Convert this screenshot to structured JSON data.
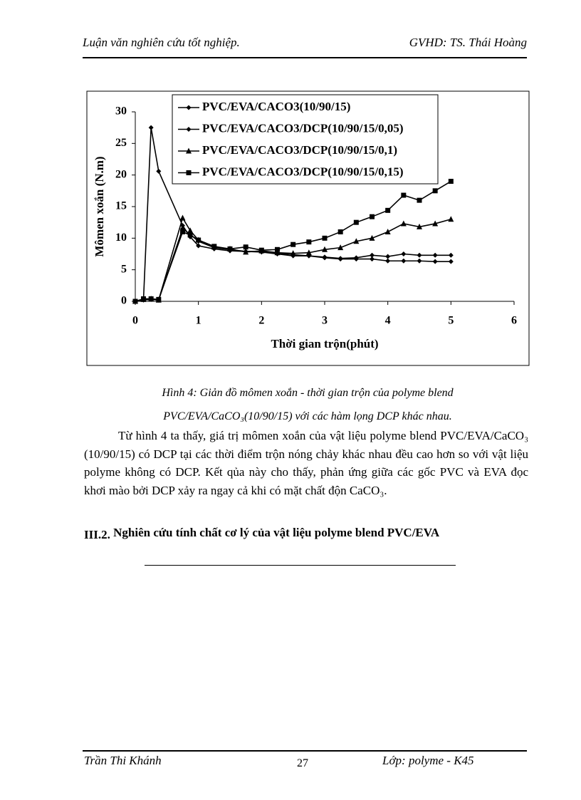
{
  "header": {
    "left": "Luận văn nghiên cứu tốt nghiệp.",
    "right": "GVHD: TS. Thái Hoàng"
  },
  "chart_data": {
    "type": "line",
    "x_label": "Thời gian trộn(phút)",
    "y_label": "Mômen xoắn (N.m)",
    "xlim": [
      0,
      6
    ],
    "xticks": [
      0,
      1,
      2,
      3,
      4,
      5,
      6
    ],
    "ylim": [
      0,
      30
    ],
    "yticks": [
      0,
      5,
      10,
      15,
      20,
      25,
      30
    ],
    "grid": false,
    "legend": "top",
    "x": [
      0,
      0.13,
      0.25,
      0.37,
      0.75,
      0.87,
      1.0,
      1.25,
      1.5,
      1.75,
      2.0,
      2.25,
      2.5,
      2.75,
      3.0,
      3.25,
      3.5,
      3.75,
      4.0,
      4.25,
      4.5,
      4.75,
      5.0
    ],
    "series": [
      {
        "name": "PVC/EVA/CACO3(10/90/15)",
        "color": "#000000",
        "marker": "diamond",
        "values": [
          0,
          0.3,
          27.5,
          20.6,
          12,
          10.2,
          8.8,
          8.3,
          8.0,
          7.9,
          7.8,
          7.5,
          7.2,
          7.2,
          6.9,
          6.7,
          6.7,
          6.7,
          6.4,
          6.4,
          6.4,
          6.3,
          6.3
        ]
      },
      {
        "name": "PVC/EVA/CACO3/DCP(10/90/15/0,05)",
        "color": "#000000",
        "marker": "diamond",
        "values": [
          0,
          0.2,
          0.3,
          0.2,
          11.5,
          10.6,
          9.5,
          8.5,
          8.2,
          7.9,
          7.9,
          7.6,
          7.4,
          7.2,
          7.0,
          6.8,
          6.9,
          7.3,
          7.1,
          7.5,
          7.3,
          7.3,
          7.3
        ]
      },
      {
        "name": "PVC/EVA/CACO3/DCP(10/90/15/0,1)",
        "color": "#000000",
        "marker": "triangle",
        "values": [
          0,
          0.3,
          0.4,
          0.2,
          13.2,
          11.2,
          9.7,
          8.6,
          8.3,
          7.8,
          8.0,
          7.7,
          7.6,
          7.7,
          8.2,
          8.5,
          9.5,
          10.0,
          11.0,
          12.3,
          11.8,
          12.3,
          13.0
        ]
      },
      {
        "name": "PVC/EVA/CACO3/DCP(10/90/15/0,15)",
        "color": "#000000",
        "marker": "square",
        "values": [
          0,
          0.4,
          0.4,
          0.3,
          11.0,
          10.5,
          9.7,
          8.7,
          8.3,
          8.6,
          8.1,
          8.2,
          9.0,
          9.4,
          10.0,
          11.0,
          12.5,
          13.4,
          14.4,
          16.8,
          16.0,
          17.5,
          19.0
        ]
      }
    ]
  },
  "caption": [
    "Hình 4: Giản đồ mômen xoắn - thời gian trộn của polyme blend",
    "PVC/EVA/CaCO₃(10/90/15) với các hàm lọng  DCP khác nhau."
  ],
  "paragraph": "Từ hình 4 ta thấy, giá trị mômen xoắn của vật liệu polyme blend PVC/EVA/CaCO₃ (10/90/15) có DCP tại các thời điểm trộn nóng chảy khác nhau đều cao hơn so với vật liệu polyme không có DCP. Kết qủa này cho thấy, phản ứng giữa các gốc PVC và EVA đọc  khơi mào bởi DCP xảy ra ngay cả khi có mặt chất độn CaCO₃.",
  "section": {
    "number": "III.2.",
    "title": "Nghiên cứu tính chất cơ lý của vật liệu polyme blend PVC/EVA"
  },
  "footer": {
    "left": "Trần Thi Khánh",
    "page": "27",
    "right": "Lớp:  polyme - K45"
  }
}
